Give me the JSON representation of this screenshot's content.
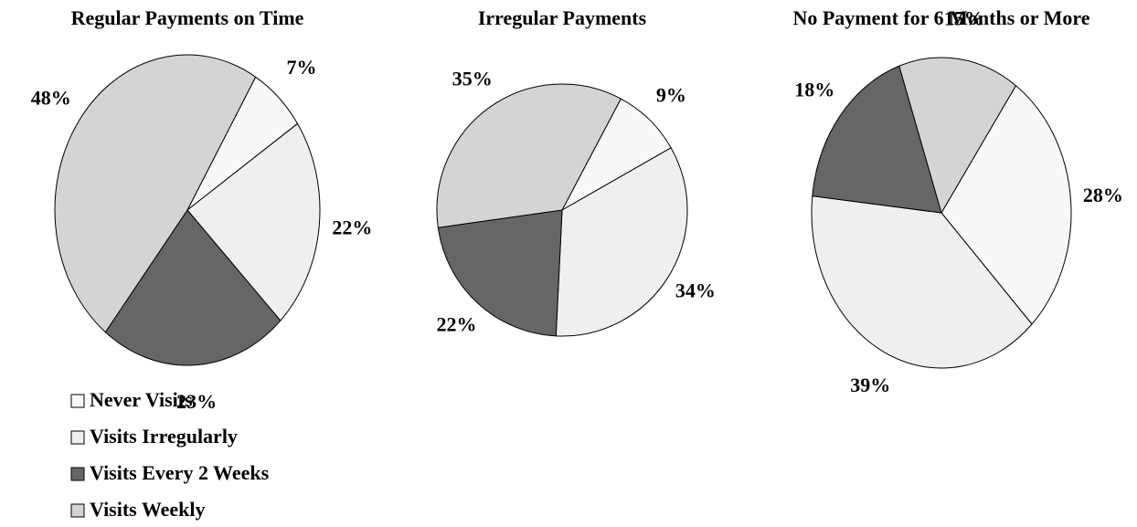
{
  "chart_data": [
    {
      "type": "pie",
      "title": "Regular Payments on Time",
      "categories": [
        "Never Visits",
        "Visits Irregularly",
        "Visits Every 2 Weeks",
        "Visits Weekly"
      ],
      "values": [
        7,
        22,
        23,
        48
      ],
      "value_labels": [
        "7%",
        "22%",
        "23%",
        "48%"
      ],
      "colors": [
        "#f8f8f8",
        "#efefef",
        "#666666",
        "#d4d4d4"
      ]
    },
    {
      "type": "pie",
      "title": "Irregular Payments",
      "categories": [
        "Never Visits",
        "Visits Irregularly",
        "Visits Every 2 Weeks",
        "Visits Weekly"
      ],
      "values": [
        9,
        34,
        22,
        35
      ],
      "value_labels": [
        "9%",
        "34%",
        "22%",
        "35%"
      ],
      "colors": [
        "#f8f8f8",
        "#efefef",
        "#666666",
        "#d4d4d4"
      ]
    },
    {
      "type": "pie",
      "title": "No Payment for 6 Months or More",
      "categories": [
        "Never Visits",
        "Visits Irregularly",
        "Visits Every 2 Weeks",
        "Visits Weekly"
      ],
      "values": [
        28,
        39,
        18,
        15
      ],
      "value_labels": [
        "28%",
        "39%",
        "18%",
        "15%"
      ],
      "colors": [
        "#f8f8f8",
        "#efefef",
        "#666666",
        "#d4d4d4"
      ]
    }
  ]
}
